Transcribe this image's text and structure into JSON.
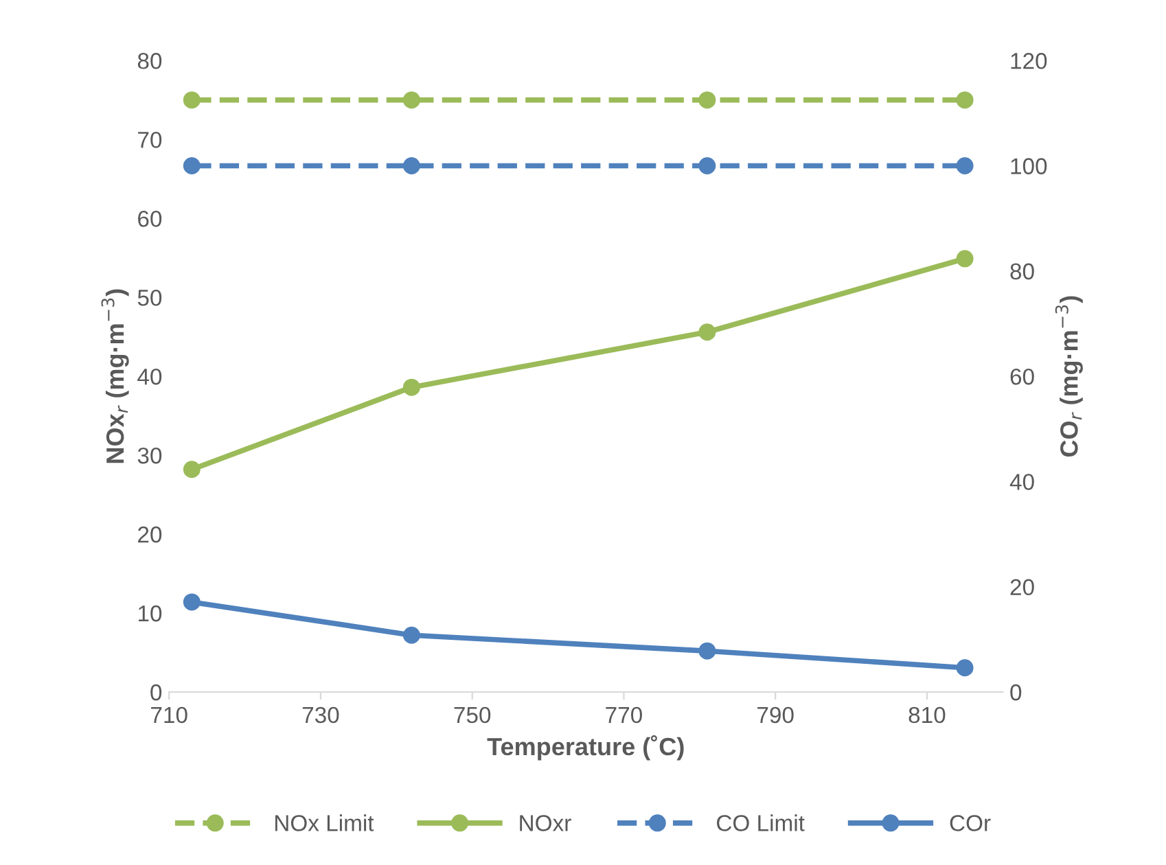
{
  "chart_data": {
    "type": "line",
    "xlabel": "Temperature (˚C)",
    "ylabel": "NOx$_{r}$ (mg·m$^{−3}$)",
    "y2label": "CO$_{r}$ (mg·m$^{−3}$)",
    "x": [
      713,
      742,
      781,
      815
    ],
    "xlim": [
      710,
      820
    ],
    "xticks": [
      710,
      730,
      750,
      770,
      790,
      810
    ],
    "ylim": [
      0,
      80
    ],
    "yticks": [
      0,
      10,
      20,
      30,
      40,
      50,
      60,
      70,
      80
    ],
    "y2lim": [
      0,
      120
    ],
    "y2ticks": [
      0,
      20,
      40,
      60,
      80,
      100,
      120
    ],
    "grid": false,
    "legend": "bottom",
    "marker": "circle",
    "series": [
      {
        "name": "NOx Limit",
        "color": "#9bbb59",
        "line_style": "dashed",
        "values": [
          75,
          75,
          75,
          75
        ]
      },
      {
        "name": "NOxr",
        "color": "#9bbb59",
        "line_style": "solid",
        "values": [
          28.2,
          38.6,
          45.6,
          54.9
        ]
      },
      {
        "name": "CO Limit",
        "color": "#4f81bd",
        "line_style": "dashed",
        "axis": "y2",
        "values": [
          100,
          100,
          100,
          100
        ]
      },
      {
        "name": "COr",
        "color": "#4f81bd",
        "line_style": "solid",
        "axis": "y2",
        "values": [
          17.1,
          10.8,
          7.8,
          4.6
        ]
      }
    ]
  }
}
